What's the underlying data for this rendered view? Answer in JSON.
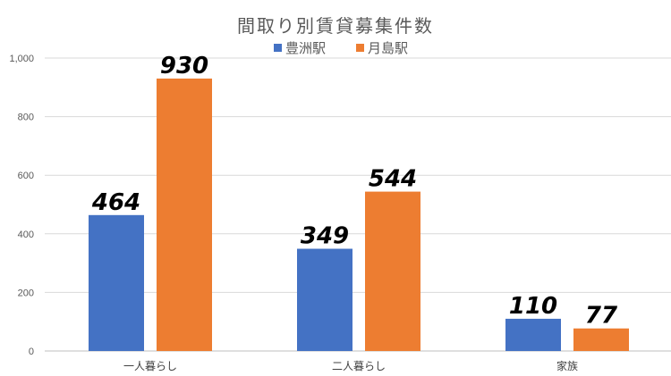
{
  "chart_data": {
    "type": "bar",
    "title": "間取り別賃貸募集件数",
    "categories": [
      "一人暮らし",
      "二人暮らし",
      "家族"
    ],
    "series": [
      {
        "name": "豊洲駅",
        "values": [
          464,
          349,
          110
        ],
        "color": "#4472C4"
      },
      {
        "name": "月島駅",
        "values": [
          930,
          544,
          77
        ],
        "color": "#ED7D31"
      }
    ],
    "ylim": [
      0,
      1000
    ],
    "yticks": [
      "0",
      "200",
      "400",
      "600",
      "800",
      "1,000"
    ],
    "grid": true,
    "legend": "top",
    "data_labels": true
  }
}
